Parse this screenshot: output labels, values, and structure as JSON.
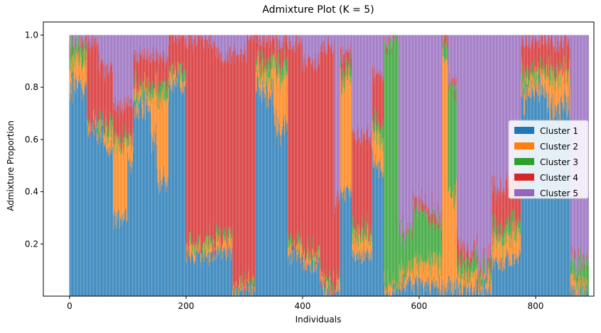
{
  "chart_data": {
    "type": "bar",
    "stacked": true,
    "title": "Admixture Plot (K = 5)",
    "xlabel": "Individuals",
    "ylabel": "Admixture Proportion",
    "xlim": [
      -45,
      900
    ],
    "ylim": [
      0.0,
      1.05
    ],
    "xticks": [
      0,
      200,
      400,
      600,
      800
    ],
    "yticks": [
      0.2,
      0.4,
      0.6,
      0.8,
      1.0
    ],
    "ytick_labels": [
      "0.2",
      "0.4",
      "0.6",
      "0.8",
      "1.0"
    ],
    "n_individuals": 892,
    "legend_position": "center-right",
    "series": [
      {
        "name": "Cluster 1",
        "color": "#1f77b4"
      },
      {
        "name": "Cluster 2",
        "color": "#ff7f0e"
      },
      {
        "name": "Cluster 3",
        "color": "#2ca02c"
      },
      {
        "name": "Cluster 4",
        "color": "#d62728"
      },
      {
        "name": "Cluster 5",
        "color": "#9467bd"
      }
    ],
    "segments": [
      {
        "start": 0,
        "end": 20,
        "proportions": [
          0.81,
          0.1,
          0.05,
          0.02,
          0.02
        ]
      },
      {
        "start": 20,
        "end": 30,
        "proportions": [
          0.8,
          0.1,
          0.06,
          0.01,
          0.03
        ]
      },
      {
        "start": 30,
        "end": 50,
        "proportions": [
          0.63,
          0.02,
          0.02,
          0.3,
          0.03
        ]
      },
      {
        "start": 50,
        "end": 60,
        "proportions": [
          0.63,
          0.02,
          0.02,
          0.22,
          0.11
        ]
      },
      {
        "start": 60,
        "end": 75,
        "proportions": [
          0.56,
          0.07,
          0.03,
          0.2,
          0.14
        ]
      },
      {
        "start": 75,
        "end": 100,
        "proportions": [
          0.3,
          0.28,
          0.03,
          0.12,
          0.27
        ]
      },
      {
        "start": 100,
        "end": 110,
        "proportions": [
          0.52,
          0.08,
          0.02,
          0.12,
          0.26
        ]
      },
      {
        "start": 110,
        "end": 140,
        "proportions": [
          0.72,
          0.06,
          0.03,
          0.11,
          0.08
        ]
      },
      {
        "start": 140,
        "end": 150,
        "proportions": [
          0.6,
          0.18,
          0.03,
          0.12,
          0.07
        ]
      },
      {
        "start": 150,
        "end": 170,
        "proportions": [
          0.45,
          0.32,
          0.04,
          0.1,
          0.09
        ]
      },
      {
        "start": 170,
        "end": 200,
        "proportions": [
          0.82,
          0.03,
          0.02,
          0.13,
          0.0
        ]
      },
      {
        "start": 200,
        "end": 250,
        "proportions": [
          0.15,
          0.03,
          0.02,
          0.78,
          0.02
        ]
      },
      {
        "start": 250,
        "end": 280,
        "proportions": [
          0.17,
          0.03,
          0.02,
          0.7,
          0.08
        ]
      },
      {
        "start": 280,
        "end": 305,
        "proportions": [
          0.01,
          0.01,
          0.01,
          0.9,
          0.07
        ]
      },
      {
        "start": 305,
        "end": 320,
        "proportions": [
          0.02,
          0.01,
          0.01,
          0.96,
          0.0
        ]
      },
      {
        "start": 320,
        "end": 350,
        "proportions": [
          0.78,
          0.07,
          0.05,
          0.08,
          0.02
        ]
      },
      {
        "start": 350,
        "end": 375,
        "proportions": [
          0.65,
          0.2,
          0.05,
          0.07,
          0.03
        ]
      },
      {
        "start": 375,
        "end": 400,
        "proportions": [
          0.16,
          0.03,
          0.02,
          0.76,
          0.03
        ]
      },
      {
        "start": 400,
        "end": 430,
        "proportions": [
          0.12,
          0.03,
          0.02,
          0.73,
          0.1
        ]
      },
      {
        "start": 430,
        "end": 455,
        "proportions": [
          0.03,
          0.02,
          0.01,
          0.9,
          0.04
        ]
      },
      {
        "start": 455,
        "end": 465,
        "proportions": [
          0.03,
          0.02,
          0.01,
          0.3,
          0.64
        ]
      },
      {
        "start": 465,
        "end": 485,
        "proportions": [
          0.4,
          0.42,
          0.05,
          0.06,
          0.07
        ]
      },
      {
        "start": 485,
        "end": 520,
        "proportions": [
          0.16,
          0.07,
          0.03,
          0.36,
          0.38
        ]
      },
      {
        "start": 520,
        "end": 540,
        "proportions": [
          0.5,
          0.12,
          0.05,
          0.18,
          0.15
        ]
      },
      {
        "start": 540,
        "end": 555,
        "proportions": [
          0.02,
          0.03,
          0.93,
          0.0,
          0.02
        ]
      },
      {
        "start": 555,
        "end": 565,
        "proportions": [
          0.03,
          0.02,
          0.95,
          0.0,
          0.0
        ]
      },
      {
        "start": 565,
        "end": 590,
        "proportions": [
          0.05,
          0.05,
          0.15,
          0.0,
          0.75
        ]
      },
      {
        "start": 590,
        "end": 615,
        "proportions": [
          0.04,
          0.08,
          0.2,
          0.03,
          0.65
        ]
      },
      {
        "start": 615,
        "end": 640,
        "proportions": [
          0.04,
          0.1,
          0.15,
          0.03,
          0.68
        ]
      },
      {
        "start": 640,
        "end": 650,
        "proportions": [
          0.03,
          0.9,
          0.05,
          0.02,
          0.0
        ]
      },
      {
        "start": 650,
        "end": 665,
        "proportions": [
          0.04,
          0.35,
          0.4,
          0.03,
          0.18
        ]
      },
      {
        "start": 665,
        "end": 700,
        "proportions": [
          0.03,
          0.05,
          0.05,
          0.05,
          0.82
        ]
      },
      {
        "start": 700,
        "end": 725,
        "proportions": [
          0.03,
          0.04,
          0.05,
          0.03,
          0.85
        ]
      },
      {
        "start": 725,
        "end": 750,
        "proportions": [
          0.13,
          0.08,
          0.05,
          0.15,
          0.59
        ]
      },
      {
        "start": 750,
        "end": 775,
        "proportions": [
          0.15,
          0.1,
          0.05,
          0.15,
          0.55
        ]
      },
      {
        "start": 775,
        "end": 820,
        "proportions": [
          0.78,
          0.06,
          0.03,
          0.11,
          0.02
        ]
      },
      {
        "start": 820,
        "end": 860,
        "proportions": [
          0.72,
          0.12,
          0.03,
          0.1,
          0.03
        ]
      },
      {
        "start": 860,
        "end": 875,
        "proportions": [
          0.01,
          0.05,
          0.05,
          0.0,
          0.89
        ]
      },
      {
        "start": 875,
        "end": 892,
        "proportions": [
          0.01,
          0.02,
          0.1,
          0.0,
          0.87
        ]
      }
    ]
  }
}
